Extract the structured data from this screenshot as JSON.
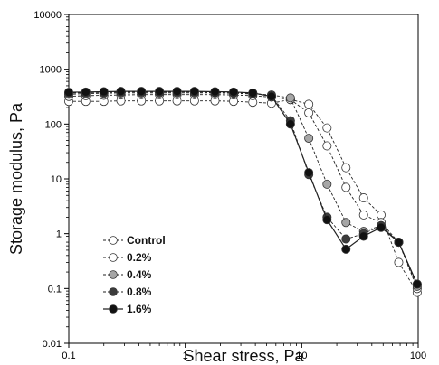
{
  "chart_data": {
    "type": "line",
    "xlabel": "Shear stress, Pa",
    "ylabel": "Storage modulus, Pa",
    "xscale": "log",
    "yscale": "log",
    "xlim": [
      0.1,
      100
    ],
    "ylim": [
      0.01,
      10000
    ],
    "grid": false,
    "legend_position": "bottom-left",
    "x_tick_labels": [
      "0.1",
      "1",
      "10",
      "100"
    ],
    "y_tick_labels": [
      "0.01",
      "0.1",
      "1",
      "10",
      "100",
      "1000",
      "10000"
    ],
    "series": [
      {
        "name": "Control",
        "marker_fill": "#ffffff",
        "line_style": "dashed",
        "x": [
          0.1,
          0.14,
          0.2,
          0.28,
          0.42,
          0.6,
          0.85,
          1.2,
          1.8,
          2.6,
          3.8,
          5.5,
          8,
          11.5,
          16.5,
          24,
          34,
          48,
          68,
          98
        ],
        "y": [
          260,
          260,
          260,
          265,
          265,
          265,
          265,
          265,
          265,
          260,
          250,
          240,
          280,
          230,
          85,
          16,
          4.5,
          2.2,
          0.3,
          0.085
        ]
      },
      {
        "name": "0.2%",
        "marker_fill": "#ffffff",
        "line_style": "dashed",
        "x": [
          0.1,
          0.14,
          0.2,
          0.28,
          0.42,
          0.6,
          0.85,
          1.2,
          1.8,
          2.6,
          3.8,
          5.5,
          8,
          11.5,
          16.5,
          24,
          34,
          48,
          68,
          98
        ],
        "y": [
          320,
          330,
          335,
          340,
          345,
          345,
          345,
          345,
          345,
          340,
          330,
          310,
          280,
          160,
          40,
          7,
          2.2,
          1.6,
          0.7,
          0.1
        ]
      },
      {
        "name": "0.4%",
        "marker_fill": "#a6a6a6",
        "line_style": "dashed",
        "x": [
          0.1,
          0.14,
          0.2,
          0.28,
          0.42,
          0.6,
          0.85,
          1.2,
          1.8,
          2.6,
          3.8,
          5.5,
          8,
          11.5,
          16.5,
          24,
          34,
          48,
          68,
          98
        ],
        "y": [
          350,
          360,
          365,
          370,
          370,
          370,
          370,
          370,
          370,
          365,
          355,
          340,
          300,
          55,
          8,
          1.6,
          1.1,
          1.4,
          0.7,
          0.11
        ]
      },
      {
        "name": "0.8%",
        "marker_fill": "#3c3c3c",
        "line_style": "dashed",
        "x": [
          0.1,
          0.14,
          0.2,
          0.28,
          0.42,
          0.6,
          0.85,
          1.2,
          1.8,
          2.6,
          3.8,
          5.5,
          8,
          11.5,
          16.5,
          24,
          34,
          48,
          68,
          98
        ],
        "y": [
          370,
          375,
          380,
          385,
          385,
          385,
          385,
          385,
          380,
          375,
          365,
          330,
          115,
          12,
          2,
          0.8,
          1,
          1.4,
          0.7,
          0.12
        ]
      },
      {
        "name": "1.6%",
        "marker_fill": "#111111",
        "line_style": "solid",
        "x": [
          0.1,
          0.14,
          0.2,
          0.28,
          0.42,
          0.6,
          0.85,
          1.2,
          1.8,
          2.6,
          3.8,
          5.5,
          8,
          11.5,
          16.5,
          24,
          34,
          48,
          68,
          98
        ],
        "y": [
          380,
          385,
          390,
          395,
          395,
          395,
          395,
          395,
          390,
          385,
          370,
          320,
          100,
          13,
          1.8,
          0.52,
          0.9,
          1.3,
          0.7,
          0.12
        ]
      }
    ]
  }
}
